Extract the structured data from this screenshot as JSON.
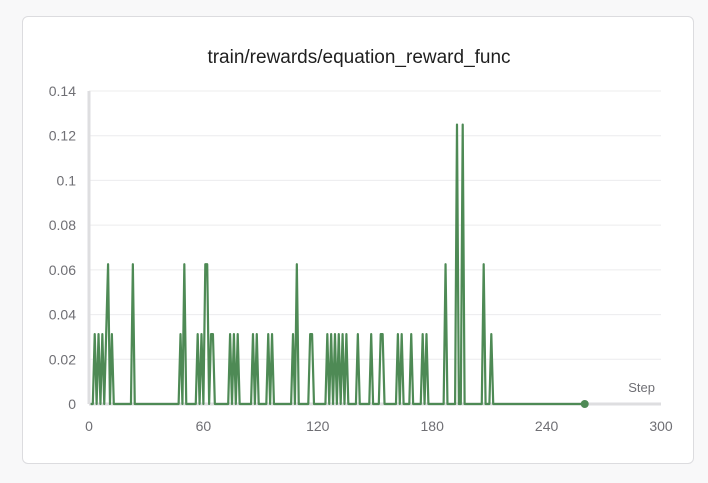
{
  "chart_data": {
    "type": "line",
    "title": "train/rewards/equation_reward_func",
    "xlabel": "Step",
    "ylabel": "",
    "xlim": [
      0,
      300
    ],
    "ylim": [
      0,
      0.14
    ],
    "xticks": [
      0,
      60,
      120,
      180,
      240,
      300
    ],
    "xtick_labels": [
      "0",
      "60",
      "120",
      "180",
      "240",
      "300"
    ],
    "yticks": [
      0,
      0.02,
      0.04,
      0.06,
      0.08,
      0.1,
      0.12,
      0.14
    ],
    "ytick_labels": [
      "0",
      "0.02",
      "0.04",
      "0.06",
      "0.08",
      "0.1",
      "0.12",
      "0.14"
    ],
    "grid": true,
    "series": [
      {
        "color": "#4e8a55",
        "points": [
          [
            1,
            0
          ],
          [
            2,
            0
          ],
          [
            3,
            0.03125
          ],
          [
            4,
            0
          ],
          [
            5,
            0.03125
          ],
          [
            6,
            0
          ],
          [
            7,
            0.03125
          ],
          [
            8,
            0
          ],
          [
            9,
            0.03125
          ],
          [
            10,
            0.0625
          ],
          [
            11,
            0
          ],
          [
            12,
            0.03125
          ],
          [
            13,
            0
          ],
          [
            22,
            0
          ],
          [
            23,
            0.0625
          ],
          [
            24,
            0
          ],
          [
            47,
            0
          ],
          [
            48,
            0.03125
          ],
          [
            49,
            0
          ],
          [
            50,
            0.0625
          ],
          [
            51,
            0
          ],
          [
            56,
            0
          ],
          [
            57,
            0.03125
          ],
          [
            58,
            0
          ],
          [
            59,
            0.03125
          ],
          [
            60,
            0
          ],
          [
            61,
            0.0625
          ],
          [
            62,
            0.0625
          ],
          [
            63,
            0
          ],
          [
            64,
            0.03125
          ],
          [
            65,
            0.03125
          ],
          [
            66,
            0
          ],
          [
            73,
            0
          ],
          [
            74,
            0.03125
          ],
          [
            75,
            0
          ],
          [
            76,
            0.03125
          ],
          [
            77,
            0
          ],
          [
            78,
            0.03125
          ],
          [
            79,
            0
          ],
          [
            85,
            0
          ],
          [
            86,
            0.03125
          ],
          [
            87,
            0
          ],
          [
            88,
            0.03125
          ],
          [
            89,
            0
          ],
          [
            93,
            0
          ],
          [
            94,
            0.03125
          ],
          [
            95,
            0
          ],
          [
            96,
            0.03125
          ],
          [
            97,
            0
          ],
          [
            106,
            0
          ],
          [
            107,
            0.03125
          ],
          [
            108,
            0
          ],
          [
            109,
            0.0625
          ],
          [
            110,
            0
          ],
          [
            115,
            0
          ],
          [
            116,
            0.03125
          ],
          [
            117,
            0.03125
          ],
          [
            118,
            0
          ],
          [
            124,
            0
          ],
          [
            125,
            0.03125
          ],
          [
            126,
            0
          ],
          [
            127,
            0.03125
          ],
          [
            128,
            0
          ],
          [
            129,
            0.03125
          ],
          [
            130,
            0
          ],
          [
            131,
            0.03125
          ],
          [
            132,
            0
          ],
          [
            133,
            0.03125
          ],
          [
            134,
            0
          ],
          [
            135,
            0.03125
          ],
          [
            136,
            0
          ],
          [
            140,
            0
          ],
          [
            141,
            0.03125
          ],
          [
            142,
            0
          ],
          [
            147,
            0
          ],
          [
            148,
            0.03125
          ],
          [
            149,
            0
          ],
          [
            152,
            0
          ],
          [
            153,
            0.03125
          ],
          [
            154,
            0.03125
          ],
          [
            155,
            0
          ],
          [
            161,
            0
          ],
          [
            162,
            0.03125
          ],
          [
            163,
            0
          ],
          [
            164,
            0.03125
          ],
          [
            165,
            0
          ],
          [
            168,
            0
          ],
          [
            169,
            0.03125
          ],
          [
            170,
            0
          ],
          [
            174,
            0
          ],
          [
            175,
            0.03125
          ],
          [
            176,
            0
          ],
          [
            177,
            0.03125
          ],
          [
            178,
            0
          ],
          [
            186,
            0
          ],
          [
            187,
            0.0625
          ],
          [
            188,
            0
          ],
          [
            192,
            0
          ],
          [
            193,
            0.125
          ],
          [
            194,
            0
          ],
          [
            195,
            0
          ],
          [
            196,
            0.125
          ],
          [
            197,
            0
          ],
          [
            206,
            0
          ],
          [
            207,
            0.0625
          ],
          [
            208,
            0
          ],
          [
            210,
            0
          ],
          [
            211,
            0.03125
          ],
          [
            212,
            0
          ],
          [
            260,
            0
          ]
        ]
      }
    ]
  }
}
